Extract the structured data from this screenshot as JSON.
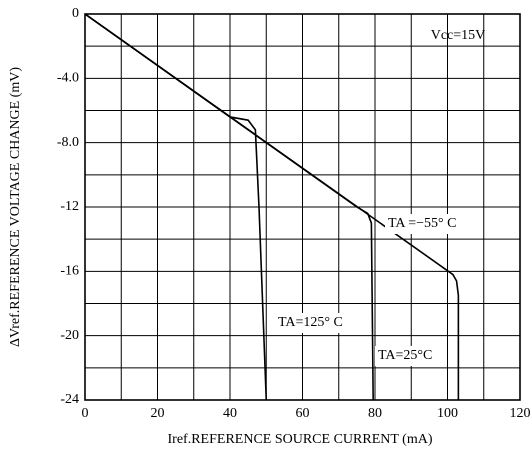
{
  "chart_data": {
    "type": "line",
    "x_label": "Iref.REFERENCE SOURCE CURRENT (mA)",
    "y_label": "ΔVref.REFERENCE VOLTAGE CHANGE (mV)",
    "annotations": [
      "Vcc=15V"
    ],
    "xlim": [
      0,
      120
    ],
    "ylim": [
      -24,
      0
    ],
    "xticks": [
      0,
      20,
      40,
      60,
      80,
      100,
      120
    ],
    "yticks": [
      0,
      {
        "value": -4,
        "label": "-4.0"
      },
      {
        "value": -8,
        "label": "-8.0"
      },
      -12,
      -16,
      -20,
      -24
    ],
    "xminor_ticks": [
      10,
      30,
      50,
      70,
      90,
      110
    ],
    "yminor_ticks": [
      -2,
      -6,
      -10,
      -14,
      -18,
      -22
    ],
    "grid": true,
    "series": [
      {
        "name": "TA =−55° C",
        "color": "#000000",
        "x": [
          0,
          101.5,
          102.5,
          103,
          103
        ],
        "values": [
          0,
          -16.2,
          -16.6,
          -17.5,
          -24
        ]
      },
      {
        "name": "TA=125° C",
        "color": "#000000",
        "x": [
          0,
          40,
          45,
          47,
          48,
          50
        ],
        "values": [
          0,
          -6.4,
          -6.6,
          -7.2,
          -12,
          -24
        ]
      },
      {
        "name": "TA=25°C",
        "color": "#000000",
        "x": [
          0,
          75,
          78,
          79,
          79.5
        ],
        "values": [
          0,
          -12,
          -12.4,
          -13,
          -24
        ]
      }
    ]
  }
}
